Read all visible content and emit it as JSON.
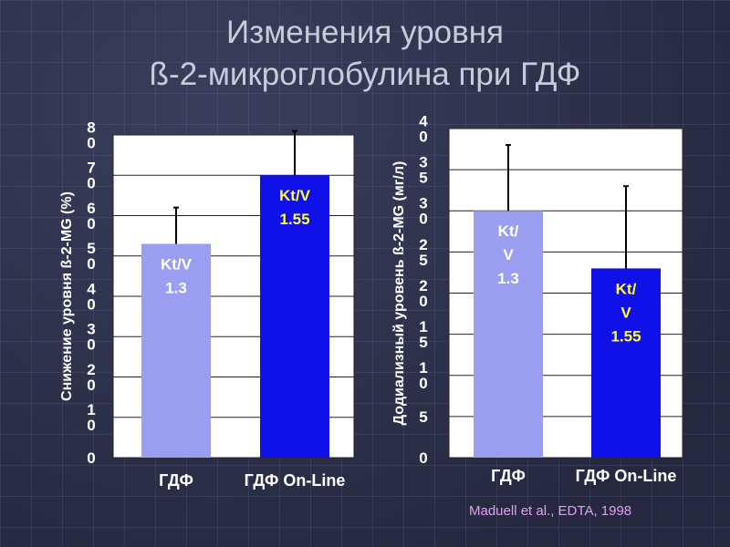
{
  "title_line1": "Изменения уровня",
  "title_line2": "ß-2-микроглобулина при ГДФ",
  "citation": "Maduell et al., EDTA, 1998",
  "colors": {
    "light_bar": "#9a9ef0",
    "dark_bar": "#1010e8",
    "plot_bg": "#ffffff",
    "grid": "#222222",
    "label_text": "#ffffff",
    "bar_label_light": "#ffffff",
    "bar_label_dark": "#ffff33"
  },
  "chart_data": [
    {
      "type": "bar",
      "ylabel": "Снижение уровня ß-2-MG (%)",
      "ylim": [
        0,
        80
      ],
      "yticks": [
        "0",
        "1\n0",
        "2\n0",
        "3\n0",
        "4\n0",
        "5\n0",
        "6\n0",
        "7\n0",
        "8\n0"
      ],
      "categories": [
        "ГДФ",
        "ГДФ On-Line"
      ],
      "values": [
        53,
        70
      ],
      "error_upper": [
        62,
        81
      ],
      "bar_labels": [
        "Kt/V\n1.3",
        "Kt/V\n1.55"
      ],
      "grid": true
    },
    {
      "type": "bar",
      "ylabel": "Додиализный уровень ß-2-MG (мг/л)",
      "ylim": [
        0,
        40
      ],
      "yticks": [
        "0",
        "5",
        "1\n0",
        "1\n5",
        "2\n0",
        "2\n5",
        "3\n0",
        "3\n5",
        "4\n0"
      ],
      "categories": [
        "ГДФ",
        "ГДФ On-Line"
      ],
      "values": [
        30,
        23
      ],
      "error_upper": [
        38,
        33
      ],
      "bar_labels": [
        "Kt/\nV\n1.3",
        "Kt/\nV\n1.55"
      ],
      "grid": true
    }
  ]
}
